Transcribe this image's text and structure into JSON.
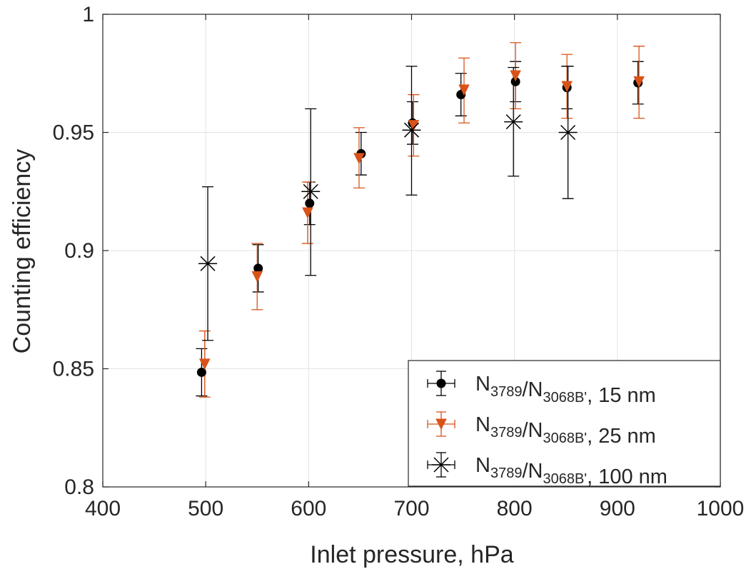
{
  "chart_data": {
    "type": "scatter",
    "xlabel": "Inlet pressure, hPa",
    "ylabel": "Counting efficiency",
    "xlim": [
      400,
      1000
    ],
    "ylim": [
      0.8,
      1.0
    ],
    "xticks": [
      "400",
      "500",
      "600",
      "700",
      "800",
      "900",
      "1000"
    ],
    "yticks": [
      "0.8",
      "0.85",
      "0.9",
      "0.95",
      "1"
    ],
    "grid": true,
    "legend_position": "bottom-right",
    "series": [
      {
        "legend": {
          "main": "N",
          "sub1": "3789",
          "mid": "/N",
          "sub2": "3068B'",
          "tail": ", 15 nm"
        },
        "marker": "filled-circle",
        "color": "#000000",
        "points": [
          {
            "x": 496,
            "y": 0.8485,
            "ylo": 0.8385,
            "yhi": 0.8585
          },
          {
            "x": 551,
            "y": 0.8925,
            "ylo": 0.8825,
            "yhi": 0.9025
          },
          {
            "x": 601,
            "y": 0.92,
            "ylo": 0.911,
            "yhi": 0.929
          },
          {
            "x": 651,
            "y": 0.941,
            "ylo": 0.932,
            "yhi": 0.95
          },
          {
            "x": 701,
            "y": 0.954,
            "ylo": 0.945,
            "yhi": 0.963
          },
          {
            "x": 748,
            "y": 0.966,
            "ylo": 0.957,
            "yhi": 0.975
          },
          {
            "x": 801,
            "y": 0.9715,
            "ylo": 0.963,
            "yhi": 0.98
          },
          {
            "x": 851,
            "y": 0.969,
            "ylo": 0.96,
            "yhi": 0.978
          },
          {
            "x": 920,
            "y": 0.971,
            "ylo": 0.962,
            "yhi": 0.98
          }
        ]
      },
      {
        "legend": {
          "main": "N",
          "sub1": "3789",
          "mid": "/N",
          "sub2": "3068B'",
          "tail": ", 25 nm"
        },
        "marker": "filled-triangle-down",
        "color": "#D95319",
        "points": [
          {
            "x": 499,
            "y": 0.852,
            "ylo": 0.838,
            "yhi": 0.866
          },
          {
            "x": 550,
            "y": 0.889,
            "ylo": 0.875,
            "yhi": 0.903
          },
          {
            "x": 599,
            "y": 0.916,
            "ylo": 0.903,
            "yhi": 0.929
          },
          {
            "x": 649,
            "y": 0.939,
            "ylo": 0.9265,
            "yhi": 0.952
          },
          {
            "x": 702,
            "y": 0.953,
            "ylo": 0.94,
            "yhi": 0.966
          },
          {
            "x": 751,
            "y": 0.968,
            "ylo": 0.954,
            "yhi": 0.9815
          },
          {
            "x": 801,
            "y": 0.974,
            "ylo": 0.96,
            "yhi": 0.988
          },
          {
            "x": 851,
            "y": 0.9695,
            "ylo": 0.956,
            "yhi": 0.983
          },
          {
            "x": 921,
            "y": 0.9715,
            "ylo": 0.956,
            "yhi": 0.9865
          }
        ]
      },
      {
        "legend": {
          "main": "N",
          "sub1": "3789",
          "mid": "/N",
          "sub2": "3068B'",
          "tail": ",  100 nm"
        },
        "marker": "asterisk",
        "color": "#000000",
        "points": [
          {
            "x": 502,
            "y": 0.8945,
            "ylo": 0.862,
            "yhi": 0.927
          },
          {
            "x": 602,
            "y": 0.925,
            "ylo": 0.8895,
            "yhi": 0.96
          },
          {
            "x": 700,
            "y": 0.951,
            "ylo": 0.9235,
            "yhi": 0.978
          },
          {
            "x": 799,
            "y": 0.9545,
            "ylo": 0.9315,
            "yhi": 0.9775
          },
          {
            "x": 852,
            "y": 0.95,
            "ylo": 0.922,
            "yhi": 0.978
          }
        ]
      }
    ]
  }
}
